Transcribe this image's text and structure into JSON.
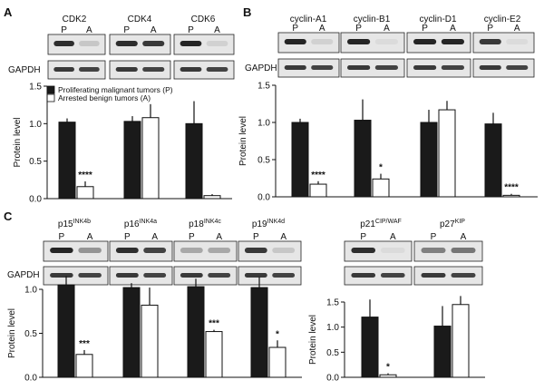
{
  "panels": {
    "A": {
      "letter": "A",
      "proteins": [
        "CDK2",
        "CDK4",
        "CDK6"
      ],
      "loading_control": "GAPDH"
    },
    "B": {
      "letter": "B",
      "proteins": [
        "cyclin-A1",
        "cyclin-B1",
        "cyclin-D1",
        "cyclin-E2"
      ],
      "loading_control": "GAPDH"
    },
    "C": {
      "letter": "C",
      "proteins": [
        {
          "base": "p15",
          "sup": "INK4b"
        },
        {
          "base": "p16",
          "sup": "INK4a"
        },
        {
          "base": "p18",
          "sup": "INK4c"
        },
        {
          "base": "p19",
          "sup": "INK4d"
        }
      ],
      "proteins_right": [
        {
          "base": "p21",
          "sup": "CIP/WAF"
        },
        {
          "base": "p27",
          "sup": "KIP"
        }
      ],
      "loading_control": "GAPDH"
    }
  },
  "lane_labels": [
    "P",
    "A"
  ],
  "legend": [
    {
      "label": "Proliferating malignant tumors (P)",
      "color": "#1a1a1a"
    },
    {
      "label": "Arrested benign tumors  (A)",
      "color": "#ffffff"
    }
  ],
  "colors": {
    "proliferating": "#1a1a1a",
    "arrested": "#ffffff",
    "blot_bg": "#e6e6e6"
  },
  "chart_data": [
    {
      "id": "A",
      "type": "bar",
      "ylabel": "Protein level",
      "ylim": [
        0,
        1.5
      ],
      "yticks": [
        "0.0",
        "0.5",
        "1.0",
        "1.5"
      ],
      "categories": [
        "CDK2",
        "CDK4",
        "CDK6"
      ],
      "series": [
        {
          "name": "Proliferating malignant tumors (P)",
          "values": [
            1.02,
            1.03,
            1.0
          ],
          "errors": [
            0.05,
            0.07,
            0.3
          ]
        },
        {
          "name": "Arrested benign tumors  (A)",
          "values": [
            0.16,
            1.08,
            0.04
          ],
          "errors": [
            0.07,
            0.18,
            0.02
          ]
        }
      ],
      "annotations": [
        "****",
        "",
        ""
      ]
    },
    {
      "id": "B",
      "type": "bar",
      "ylabel": "Protein level",
      "ylim": [
        0,
        1.5
      ],
      "yticks": [
        "0.0",
        "0.5",
        "1.0",
        "1.5"
      ],
      "categories": [
        "cyclin-A1",
        "cyclin-B1",
        "cyclin-D1",
        "cyclin-E2"
      ],
      "series": [
        {
          "name": "Proliferating malignant tumors (P)",
          "values": [
            1.0,
            1.03,
            1.0,
            0.98
          ],
          "errors": [
            0.05,
            0.28,
            0.17,
            0.15
          ]
        },
        {
          "name": "Arrested benign tumors  (A)",
          "values": [
            0.17,
            0.24,
            1.17,
            0.02
          ],
          "errors": [
            0.04,
            0.07,
            0.12,
            0.02
          ]
        }
      ],
      "annotations": [
        "****",
        "*",
        "",
        "****"
      ]
    },
    {
      "id": "C-left",
      "type": "bar",
      "ylabel": "Protein level",
      "ylim": [
        0,
        1.0
      ],
      "yticks": [
        "0.0",
        "0.5",
        "1.0"
      ],
      "categories": [
        "p15INK4b",
        "p16INK4a",
        "p18INK4c",
        "p19INK4d"
      ],
      "series": [
        {
          "name": "Proliferating malignant tumors (P)",
          "values": [
            1.05,
            1.02,
            1.03,
            1.02
          ],
          "errors": [
            0.1,
            0.05,
            0.09,
            0.12
          ]
        },
        {
          "name": "Arrested benign tumors  (A)",
          "values": [
            0.26,
            0.82,
            0.52,
            0.34
          ],
          "errors": [
            0.05,
            0.2,
            0.02,
            0.08
          ]
        }
      ],
      "annotations": [
        "***",
        "",
        "***",
        "*"
      ]
    },
    {
      "id": "C-right",
      "type": "bar",
      "ylabel": "Protein level",
      "ylim": [
        0,
        1.5
      ],
      "yticks": [
        "0.0",
        "0.5",
        "1.0",
        "1.5"
      ],
      "categories": [
        "p21CIP/WAF",
        "p27KIP"
      ],
      "series": [
        {
          "name": "Proliferating malignant tumors (P)",
          "values": [
            1.2,
            1.02
          ],
          "errors": [
            0.35,
            0.4
          ]
        },
        {
          "name": "Arrested benign tumors  (A)",
          "values": [
            0.05,
            1.45
          ],
          "errors": [
            0.03,
            0.17
          ]
        }
      ],
      "annotations": [
        "*",
        ""
      ]
    }
  ]
}
